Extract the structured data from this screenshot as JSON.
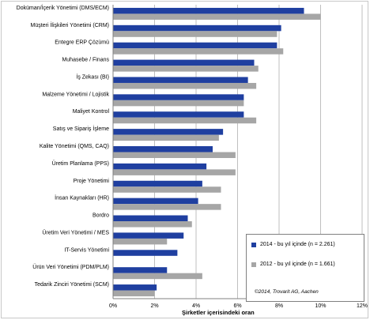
{
  "chart_data": {
    "type": "bar",
    "orientation": "horizontal",
    "xlabel": "Şirketler içerisindeki oran",
    "xlim": [
      0,
      12
    ],
    "xticks": [
      "0%",
      "2%",
      "4%",
      "6%",
      "8%",
      "10%",
      "12%"
    ],
    "grid": true,
    "legend_placement": "bottom-right",
    "categories": [
      "Doküman/İçerik Yönetimi (DMS/ECM)",
      "Müşteri İlişkileri Yönetimi (CRM)",
      "Entegre ERP Çözümü",
      "Muhasebe / Finans",
      "İş Zekası (BI)",
      "Malzeme Yönetimi / Lojistik",
      "Maliyet Kontrol",
      "Satış ve Sipariş İşleme",
      "Kalite Yönetimi (QMS, CAQ)",
      "Üretim Planlama (PPS)",
      "Proje Yönetimi",
      "İnsan Kaynakları (HR)",
      "Bordro",
      "Üretim Veri Yönetimi / MES",
      "IT-Servis Yönetimi",
      "Ürün Veri Yönetimi (PDM/PLM)",
      "Tedarik Zinciri Yönetimi (SCM)"
    ],
    "series": [
      {
        "name": "2014 - bu yıl içinde (n = 2.261)",
        "color": "#1f3fa0",
        "values": [
          9.2,
          8.1,
          7.9,
          6.8,
          6.5,
          6.3,
          6.3,
          5.3,
          4.8,
          4.5,
          4.3,
          4.1,
          3.6,
          3.4,
          3.1,
          2.6,
          2.1
        ]
      },
      {
        "name": "2012 - bu yıl içinde (n = 1.661)",
        "color": "#a6a6a6",
        "values": [
          10.0,
          7.9,
          8.2,
          7.0,
          6.9,
          6.3,
          6.9,
          5.1,
          5.9,
          5.9,
          5.2,
          5.2,
          3.8,
          2.6,
          0,
          4.3,
          2.0
        ]
      }
    ]
  },
  "copyright": "©2014, Trovarit AG, Aachen"
}
